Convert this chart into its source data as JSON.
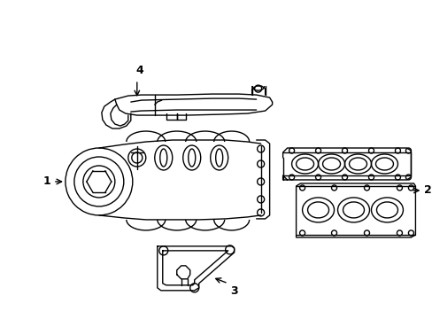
{
  "background_color": "#ffffff",
  "line_color": "#000000",
  "line_width": 1.0,
  "figsize": [
    4.89,
    3.6
  ],
  "dpi": 100,
  "label_fontsize": 9
}
